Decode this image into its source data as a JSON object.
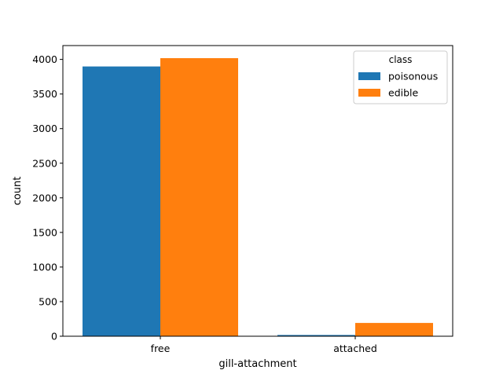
{
  "chart_data": {
    "type": "bar",
    "title": "",
    "xlabel": "gill-attachment",
    "ylabel": "count",
    "categories": [
      "free",
      "attached"
    ],
    "series": [
      {
        "name": "poisonous",
        "values": [
          3898,
          18
        ],
        "color": "#1f77b4"
      },
      {
        "name": "edible",
        "values": [
          4018,
          192
        ],
        "color": "#ff7f0e"
      }
    ],
    "ylim": [
      0,
      4200
    ],
    "yticks": [
      0,
      500,
      1000,
      1500,
      2000,
      2500,
      3000,
      3500,
      4000
    ],
    "grid": false,
    "legend": {
      "title": "class",
      "placement": "top-right"
    }
  }
}
